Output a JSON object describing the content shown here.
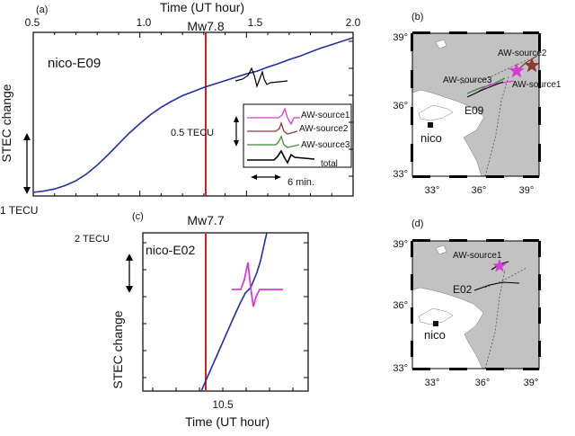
{
  "chart_data": [
    {
      "type": "line",
      "panel_label": "(a)",
      "title": "Time (UT hour)",
      "ylabel": "STEC change",
      "x_ticks": [
        "0.5",
        "1.0",
        "1.5",
        "2.0"
      ],
      "xlim": [
        0.5,
        2.0
      ],
      "series_name": "nico-E09",
      "series": [
        {
          "x": [
            0.5,
            0.55,
            0.6,
            0.65,
            0.7,
            0.75,
            0.8,
            0.85,
            0.9,
            0.95,
            1.0,
            1.05,
            1.1,
            1.15,
            1.2,
            1.25,
            1.3,
            1.35,
            1.4,
            1.45,
            1.5,
            1.55,
            1.6,
            1.65,
            1.7,
            1.75,
            1.8,
            1.85,
            1.9,
            1.95,
            2.0
          ],
          "y": [
            0.0,
            0.02,
            0.05,
            0.1,
            0.17,
            0.27,
            0.4,
            0.55,
            0.71,
            0.87,
            1.01,
            1.14,
            1.25,
            1.34,
            1.42,
            1.48,
            1.54,
            1.59,
            1.64,
            1.69,
            1.74,
            1.78,
            1.84,
            1.89,
            1.95,
            2.0,
            2.06,
            2.12,
            2.17,
            2.22,
            2.27
          ]
        }
      ],
      "event_label": "Mw7.8",
      "event_x": 1.28,
      "scale_label": "1 TECU",
      "inset": {
        "series": [
          "AW-source1",
          "AW-source2",
          "AW-source3",
          "total"
        ],
        "colors": [
          "#d63bd6",
          "#8b3a3a",
          "#3c8c3c",
          "#000000"
        ],
        "scale_label": "0.5 TECU",
        "time_label": "6 min."
      }
    },
    {
      "type": "line",
      "panel_label": "(c)",
      "xlabel": "Time (UT hour)",
      "ylabel": "STEC change",
      "x_ticks": [
        "10.5"
      ],
      "series_name": "nico-E02",
      "series": [
        {
          "x": [
            10.35,
            10.4,
            10.45,
            10.5,
            10.55,
            10.6,
            10.65,
            10.7
          ],
          "y": [
            0.0,
            0.25,
            0.6,
            0.95,
            1.3,
            1.75,
            2.4,
            3.2
          ]
        }
      ],
      "event_label": "Mw7.7",
      "scale_label": "2 TECU",
      "modelled_color": "#d63bd6"
    }
  ],
  "maps": [
    {
      "panel_label": "(b)",
      "lat_labels": [
        "39°",
        "36°",
        "33°"
      ],
      "lon_labels": [
        "33°",
        "36°",
        "39°"
      ],
      "labels": {
        "source1": "AW-source1",
        "source2": "AW-source2",
        "source3": "AW-source3",
        "satellite": "E09",
        "station": "nico"
      },
      "source_colors": {
        "source1": "#d63bd6",
        "source2": "#8b3a3a",
        "source3": "#3c8c3c"
      }
    },
    {
      "panel_label": "(d)",
      "lat_labels": [
        "39°",
        "36°",
        "33°"
      ],
      "lon_labels": [
        "33°",
        "36°",
        "39°"
      ],
      "labels": {
        "source1": "AW-source1",
        "satellite": "E02",
        "station": "nico"
      }
    }
  ],
  "colors": {
    "data_line": "#1f2fa6",
    "event_line": "#d81e1e",
    "land": "#c2c2c2"
  }
}
